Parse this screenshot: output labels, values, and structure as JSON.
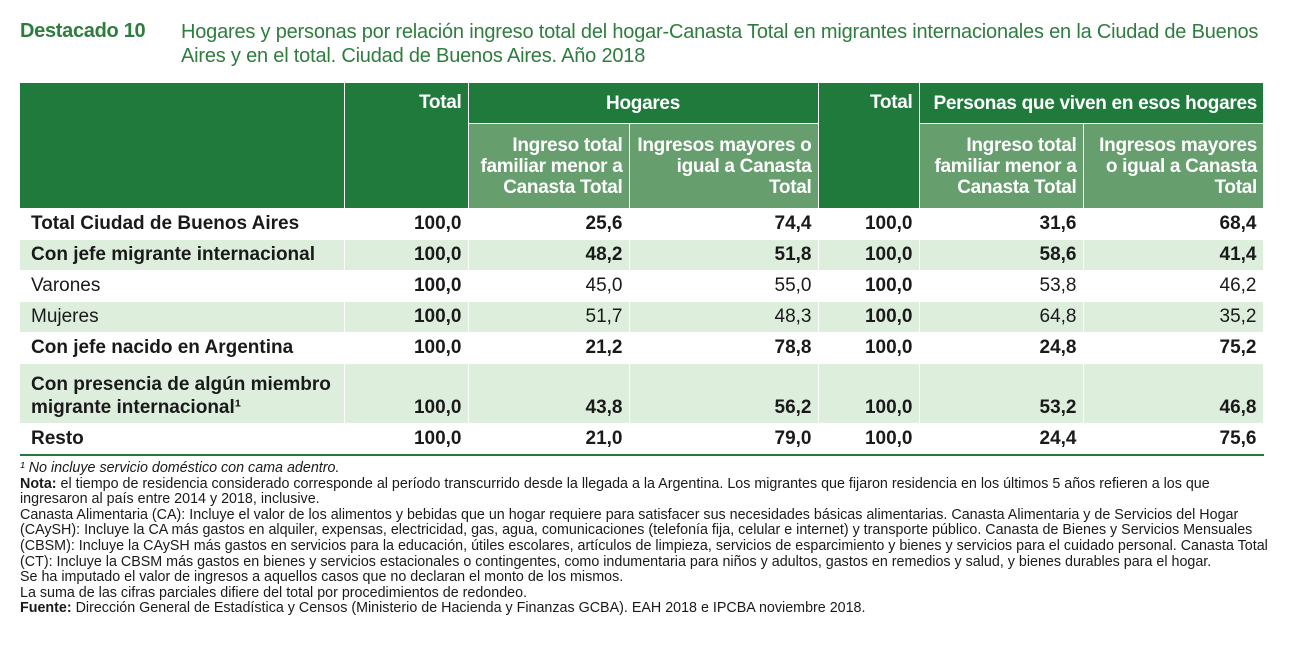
{
  "header": {
    "label": "Destacado 10",
    "title": "Hogares y personas por relación ingreso total del hogar-Canasta Total en migrantes internacionales en la Ciudad de Buenos Aires y en el total. Ciudad de Buenos Aires. Año 2018"
  },
  "table": {
    "headers": {
      "total": "Total",
      "hogares": "Hogares",
      "personas": "Personas que viven en esos hogares",
      "sub_menor": "Ingreso total familiar menor a Canasta Total",
      "sub_mayor": "Ingresos mayores o igual a Canasta Total"
    },
    "rows": [
      {
        "label": "Total Ciudad de Buenos Aires",
        "values": [
          "100,0",
          "25,6",
          "74,4",
          "100,0",
          "31,6",
          "68,4"
        ]
      },
      {
        "label": "Con jefe migrante internacional",
        "values": [
          "100,0",
          "48,2",
          "51,8",
          "100,0",
          "58,6",
          "41,4"
        ]
      },
      {
        "label": "Varones",
        "values": [
          "100,0",
          "45,0",
          "55,0",
          "100,0",
          "53,8",
          "46,2"
        ]
      },
      {
        "label": "Mujeres",
        "values": [
          "100,0",
          "51,7",
          "48,3",
          "100,0",
          "64,8",
          "35,2"
        ]
      },
      {
        "label": "Con jefe nacido en Argentina",
        "values": [
          "100,0",
          "21,2",
          "78,8",
          "100,0",
          "24,8",
          "75,2"
        ]
      },
      {
        "label": "Con presencia de algún miembro migrante internacional¹",
        "values": [
          "100,0",
          "43,8",
          "56,2",
          "100,0",
          "53,2",
          "46,8"
        ]
      },
      {
        "label": "Resto",
        "values": [
          "100,0",
          "21,0",
          "79,0",
          "100,0",
          "24,4",
          "75,6"
        ]
      }
    ]
  },
  "notes": {
    "footnote1": "¹ No incluye servicio doméstico con cama adentro.",
    "nota_label": "Nota:",
    "nota_text": " el tiempo de residencia considerado corresponde al período transcurrido desde la llegada a la Argentina. Los migrantes que fijaron residencia en los últimos 5 años refieren a los que ingresaron al país entre 2014 y 2018, inclusive.",
    "canasta": "Canasta Alimentaria (CA): Incluye el valor de los alimentos y bebidas que un hogar requiere para satisfacer sus necesidades básicas alimentarias. Canasta Alimentaria y de Servicios del Hogar (CAySH): Incluye la CA más gastos en alquiler, expensas, electricidad, gas, agua, comunicaciones (telefonía fija, celular e internet) y transporte público. Canasta de Bienes y Servicios Mensuales (CBSM): Incluye la CAySH más gastos en servicios para la educación, útiles escolares, artículos de limpieza, servicios de esparcimiento y bienes y servicios para el cuidado personal. Canasta Total (CT): Incluye la CBSM más gastos en bienes y servicios estacionales o contingentes, como indumentaria para niños y adultos, gastos en remedios y salud, y bienes durables para el hogar.",
    "imputado": "Se ha imputado el valor de ingresos a aquellos casos que no declaran el monto de los mismos.",
    "suma": "La suma de las cifras parciales difiere del total por procedimientos de redondeo.",
    "fuente_label": "Fuente:",
    "fuente_text": " Dirección General de Estadística y Censos (Ministerio de Hacienda y Finanzas GCBA). EAH 2018 e IPCBA noviembre 2018."
  }
}
